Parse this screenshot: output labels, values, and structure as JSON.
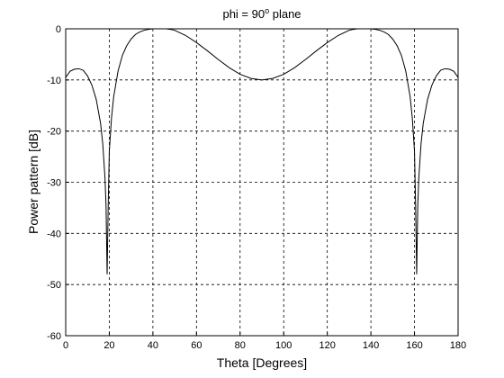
{
  "chart_data": {
    "type": "line",
    "title_main": "phi = 90",
    "title_sup": "o",
    "title_tail": " plane",
    "xlabel": "Theta [Degrees]",
    "ylabel": "Power pattern [dB]",
    "xlim": [
      0,
      180
    ],
    "ylim": [
      -60,
      0
    ],
    "xticks": [
      0,
      20,
      40,
      60,
      80,
      100,
      120,
      140,
      160,
      180
    ],
    "yticks": [
      0,
      -10,
      -20,
      -30,
      -40,
      -50,
      -60
    ],
    "grid": true,
    "series": [
      {
        "x": [
          0,
          2,
          4,
          6,
          8,
          10,
          12,
          14,
          16,
          17,
          18,
          18.5,
          19,
          19.5,
          20,
          21,
          22,
          24,
          26,
          28,
          30,
          32,
          34,
          36,
          38,
          40,
          42,
          44,
          46,
          48,
          50,
          55,
          60,
          65,
          70,
          75,
          80,
          85,
          90,
          95,
          100,
          105,
          110,
          115,
          120,
          125,
          130,
          132,
          134,
          136,
          138,
          140,
          142,
          144,
          146,
          148,
          150,
          152,
          154,
          156,
          158,
          159,
          160,
          160.5,
          161,
          161.5,
          162,
          163,
          164,
          166,
          168,
          170,
          172,
          174,
          176,
          178,
          180
        ],
        "y": [
          -9.5,
          -8.3,
          -7.9,
          -7.8,
          -8.1,
          -9.2,
          -11.0,
          -13.8,
          -18.5,
          -22.5,
          -29.0,
          -34.5,
          -48.0,
          -34.5,
          -24.0,
          -17.5,
          -13.3,
          -8.3,
          -5.2,
          -3.3,
          -2.0,
          -1.1,
          -0.6,
          -0.3,
          -0.1,
          0.0,
          0.0,
          0.0,
          0.0,
          -0.1,
          -0.3,
          -1.3,
          -2.7,
          -4.3,
          -6.0,
          -7.6,
          -8.9,
          -9.7,
          -10.0,
          -9.7,
          -8.9,
          -7.6,
          -6.0,
          -4.3,
          -2.7,
          -1.3,
          -0.3,
          -0.1,
          0.0,
          0.0,
          0.0,
          0.0,
          -0.1,
          -0.3,
          -0.6,
          -1.1,
          -2.0,
          -3.3,
          -5.2,
          -8.3,
          -13.3,
          -17.5,
          -24.0,
          -34.5,
          -48.0,
          -34.5,
          -29.0,
          -22.5,
          -18.5,
          -13.8,
          -11.0,
          -9.2,
          -8.1,
          -7.8,
          -7.9,
          -8.3,
          -9.5
        ]
      }
    ]
  }
}
